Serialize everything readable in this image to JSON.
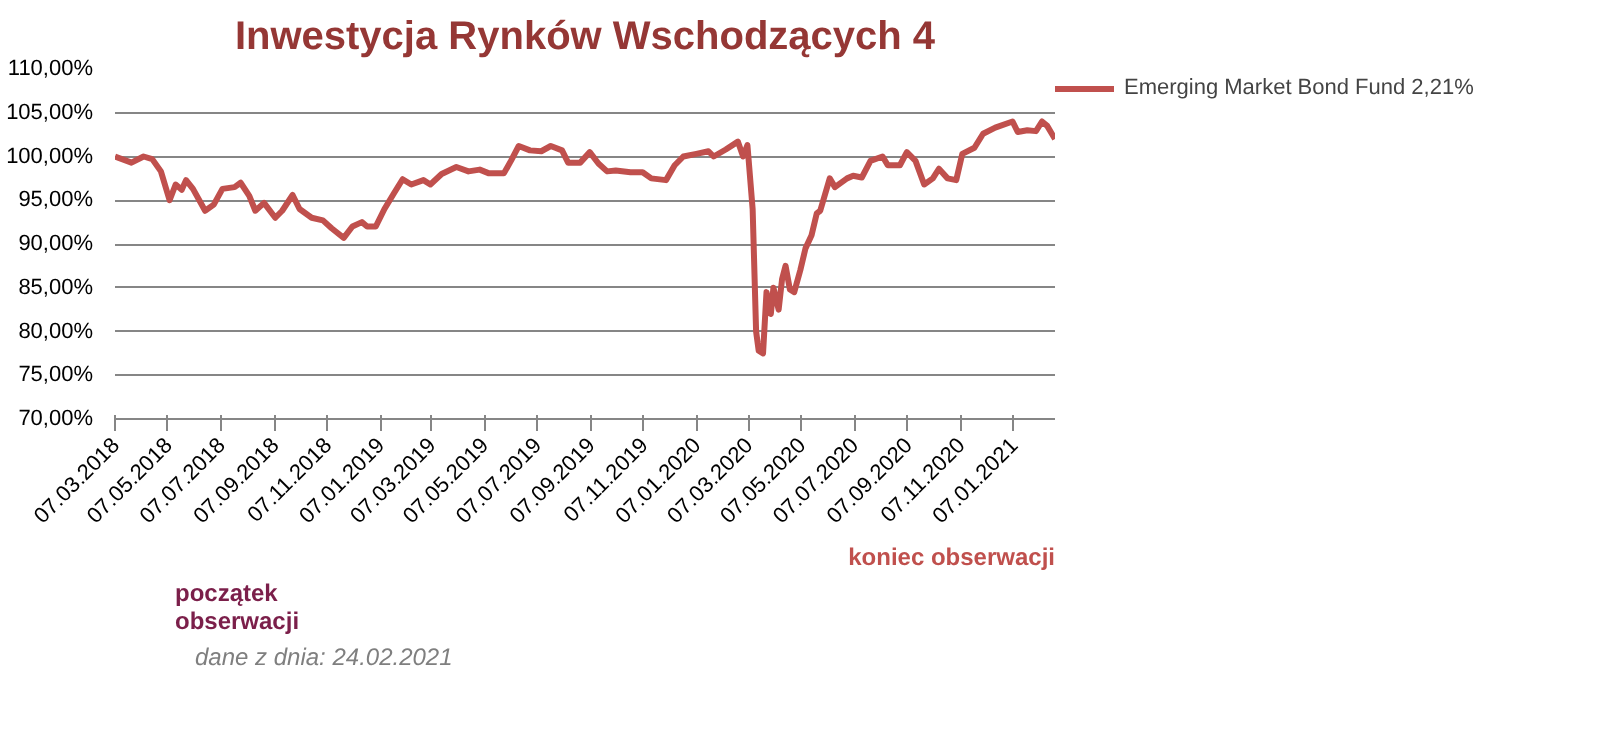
{
  "chart_data": {
    "type": "line",
    "title": "Inwestycja Rynków Wschodzących 4",
    "x": [
      "2018-03-07",
      "2018-03-26",
      "2018-04-09",
      "2018-04-19",
      "2018-04-29",
      "2018-05-09",
      "2018-05-16",
      "2018-05-23",
      "2018-05-28",
      "2018-06-05",
      "2018-06-19",
      "2018-06-29",
      "2018-07-09",
      "2018-07-23",
      "2018-07-30",
      "2018-08-09",
      "2018-08-16",
      "2018-08-26",
      "2018-09-08",
      "2018-09-16",
      "2018-09-28",
      "2018-10-06",
      "2018-10-20",
      "2018-11-02",
      "2018-11-12",
      "2018-11-26",
      "2018-12-06",
      "2018-12-17",
      "2018-12-23",
      "2019-01-02",
      "2019-01-12",
      "2019-01-23",
      "2019-02-02",
      "2019-02-12",
      "2019-02-26",
      "2019-03-06",
      "2019-03-19",
      "2019-04-05",
      "2019-04-19",
      "2019-05-02",
      "2019-05-12",
      "2019-05-30",
      "2019-06-07",
      "2019-06-16",
      "2019-06-29",
      "2019-07-12",
      "2019-07-23",
      "2019-08-05",
      "2019-08-12",
      "2019-08-26",
      "2019-09-06",
      "2019-09-16",
      "2019-09-26",
      "2019-10-06",
      "2019-10-23",
      "2019-11-06",
      "2019-11-16",
      "2019-12-03",
      "2019-12-13",
      "2019-12-23",
      "2020-01-07",
      "2020-01-21",
      "2020-01-27",
      "2020-02-10",
      "2020-02-24",
      "2020-03-01",
      "2020-03-06",
      "2020-03-12",
      "2020-03-16",
      "2020-03-19",
      "2020-03-24",
      "2020-03-28",
      "2020-04-02",
      "2020-04-05",
      "2020-04-11",
      "2020-04-15",
      "2020-04-19",
      "2020-04-24",
      "2020-04-29",
      "2020-05-06",
      "2020-05-12",
      "2020-05-19",
      "2020-05-25",
      "2020-05-29",
      "2020-06-09",
      "2020-06-15",
      "2020-06-29",
      "2020-07-06",
      "2020-07-16",
      "2020-07-26",
      "2020-08-09",
      "2020-08-15",
      "2020-08-29",
      "2020-09-06",
      "2020-09-16",
      "2020-09-26",
      "2020-10-06",
      "2020-10-13",
      "2020-10-23",
      "2020-11-02",
      "2020-11-09",
      "2020-11-23",
      "2020-12-03",
      "2020-12-17",
      "2021-01-06",
      "2021-01-12",
      "2021-01-23",
      "2021-02-02",
      "2021-02-09",
      "2021-02-15",
      "2021-02-24"
    ],
    "series": [
      {
        "name": "Emerging Market Bond Fund 2,21%",
        "color": "#c0504d",
        "values": [
          100,
          99.3,
          100,
          99.7,
          98.3,
          95.0,
          96.8,
          96.2,
          97.3,
          96.3,
          93.8,
          94.5,
          96.3,
          96.5,
          97.0,
          95.5,
          93.8,
          94.7,
          93.0,
          93.8,
          95.6,
          94.0,
          93.0,
          92.7,
          91.8,
          90.7,
          92.0,
          92.5,
          92.0,
          92.0,
          94.0,
          95.8,
          97.4,
          96.8,
          97.3,
          96.8,
          98.0,
          98.8,
          98.3,
          98.5,
          98.1,
          98.1,
          99.5,
          101.2,
          100.7,
          100.6,
          101.2,
          100.7,
          99.3,
          99.3,
          100.5,
          99.2,
          98.3,
          98.4,
          98.2,
          98.2,
          97.5,
          97.3,
          99.0,
          100.0,
          100.3,
          100.6,
          100.0,
          100.8,
          101.7,
          100.0,
          101.3,
          94.0,
          80.0,
          77.8,
          77.5,
          84.5,
          82.0,
          85.0,
          82.5,
          86.0,
          87.5,
          84.8,
          84.5,
          87.0,
          89.5,
          91.0,
          93.5,
          93.8,
          97.5,
          96.5,
          97.5,
          97.8,
          97.6,
          99.5,
          100.0,
          99.0,
          99.0,
          100.5,
          99.5,
          96.8,
          97.5,
          98.6,
          97.5,
          97.3,
          100.3,
          101.0,
          102.6,
          103.3,
          104.0,
          102.8,
          103.0,
          102.9,
          104.0,
          103.5,
          102.0
        ]
      }
    ],
    "xlim": [
      "2018-03-07",
      "2021-02-24"
    ],
    "xticks": [
      {
        "value": "2018-03-07",
        "label": "07.03.2018"
      },
      {
        "value": "2018-05-07",
        "label": "07.05.2018"
      },
      {
        "value": "2018-07-07",
        "label": "07.07.2018"
      },
      {
        "value": "2018-09-07",
        "label": "07.09.2018"
      },
      {
        "value": "2018-11-07",
        "label": "07.11.2018"
      },
      {
        "value": "2019-01-07",
        "label": "07.01.2019"
      },
      {
        "value": "2019-03-07",
        "label": "07.03.2019"
      },
      {
        "value": "2019-05-07",
        "label": "07.05.2019"
      },
      {
        "value": "2019-07-07",
        "label": "07.07.2019"
      },
      {
        "value": "2019-09-07",
        "label": "07.09.2019"
      },
      {
        "value": "2019-11-07",
        "label": "07.11.2019"
      },
      {
        "value": "2020-01-07",
        "label": "07.01.2020"
      },
      {
        "value": "2020-03-07",
        "label": "07.03.2020"
      },
      {
        "value": "2020-05-07",
        "label": "07.05.2020"
      },
      {
        "value": "2020-07-07",
        "label": "07.07.2020"
      },
      {
        "value": "2020-09-07",
        "label": "07.09.2020"
      },
      {
        "value": "2020-11-07",
        "label": "07.11.2020"
      },
      {
        "value": "2021-01-07",
        "label": "07.01.2021"
      }
    ],
    "ylim": [
      70,
      110
    ],
    "yticks": [
      {
        "value": 70,
        "label": "70,00%"
      },
      {
        "value": 75,
        "label": "75,00%"
      },
      {
        "value": 80,
        "label": "80,00%"
      },
      {
        "value": 85,
        "label": "85,00%"
      },
      {
        "value": 90,
        "label": "90,00%"
      },
      {
        "value": 95,
        "label": "95,00%"
      },
      {
        "value": 100,
        "label": "100,00%"
      },
      {
        "value": 105,
        "label": "105,00%"
      },
      {
        "value": 110,
        "label": "110,00%"
      }
    ],
    "grid": "y",
    "legend": "right",
    "line_style": "solid",
    "annotations": [
      "początek\nobserwacji",
      "koniec obserwacji",
      "dane z dnia: 24.02.2021"
    ]
  }
}
